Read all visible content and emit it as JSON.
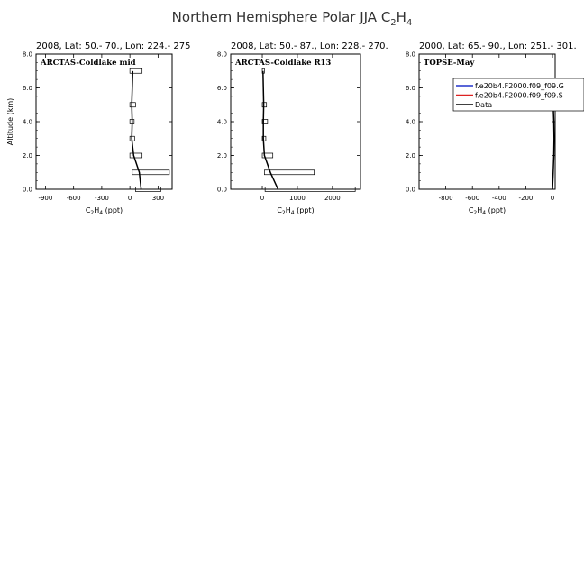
{
  "figure": {
    "title": "Northern Hemisphere Polar JJA C",
    "title_sub1": "2",
    "title_mid": "H",
    "title_sub2": "4",
    "ylabel": "Altitude (km)",
    "xlabel_main": "C",
    "xlabel_sub1": "2",
    "xlabel_mid": "H",
    "xlabel_sub2": "4",
    "xlabel_unit": " (ppt)"
  },
  "legend": {
    "entries": [
      {
        "label": "f.e20b4.F2000.f09_f09.G",
        "color": "#2233cc"
      },
      {
        "label": "f.e20b4.F2000.f09_f09.S",
        "color": "#dd2222"
      },
      {
        "label": "Data",
        "color": "#000000"
      }
    ]
  },
  "chart_data": [
    {
      "type": "line",
      "header": "2008, Lat:  50.- 70., Lon: 224.- 275",
      "campaign_label": "ARCTAS-Coldlake mid",
      "xlim": [
        -1000,
        450
      ],
      "ylim": [
        0,
        8
      ],
      "xticks": [
        -900,
        -600,
        -300,
        0,
        300
      ],
      "xtick_labels": [
        "-900",
        "-600",
        "-300",
        "0",
        "300"
      ],
      "yticks": [
        0,
        2,
        4,
        6,
        8
      ],
      "ytick_labels": [
        "0.0",
        "2.0",
        "4.0",
        "6.0",
        "8.0"
      ],
      "series": [
        {
          "name": "Data",
          "color": "#000000",
          "x": [
            120,
            100,
            40,
            20,
            25,
            20,
            30
          ],
          "y": [
            0,
            1,
            2,
            3,
            4,
            5,
            7
          ]
        }
      ],
      "ranges": [
        {
          "y": 0,
          "x0": 60,
          "x1": 330
        },
        {
          "y": 1,
          "x0": 25,
          "x1": 420
        },
        {
          "y": 2,
          "x0": 0,
          "x1": 130
        },
        {
          "y": 3,
          "x0": 0,
          "x1": 50
        },
        {
          "y": 4,
          "x0": 0,
          "x1": 45
        },
        {
          "y": 5,
          "x0": 0,
          "x1": 60
        },
        {
          "y": 7,
          "x0": 0,
          "x1": 130
        }
      ]
    },
    {
      "type": "line",
      "header": "2008, Lat:  50.- 87., Lon: 228.- 270.",
      "campaign_label": "ARCTAS-Coldlake R13",
      "xlim": [
        -900,
        2800
      ],
      "ylim": [
        0,
        8
      ],
      "xticks": [
        0,
        1000,
        2000
      ],
      "xtick_labels": [
        "0",
        "1000",
        "2000"
      ],
      "yticks": [
        0,
        2,
        4,
        6,
        8
      ],
      "ytick_labels": [
        "0.0",
        "2.0",
        "4.0",
        "6.0",
        "8.0"
      ],
      "series": [
        {
          "name": "Data",
          "color": "#000000",
          "x": [
            450,
            230,
            60,
            30,
            30,
            40,
            20
          ],
          "y": [
            0,
            1,
            2,
            3,
            4,
            5,
            7
          ]
        }
      ],
      "ranges": [
        {
          "y": 0,
          "x0": 80,
          "x1": 2650
        },
        {
          "y": 1,
          "x0": 60,
          "x1": 1480
        },
        {
          "y": 2,
          "x0": 0,
          "x1": 300
        },
        {
          "y": 3,
          "x0": 0,
          "x1": 100
        },
        {
          "y": 4,
          "x0": 0,
          "x1": 150
        },
        {
          "y": 5,
          "x0": 0,
          "x1": 120
        },
        {
          "y": 7,
          "x0": 0,
          "x1": 60
        }
      ]
    },
    {
      "type": "line",
      "header": "2000, Lat: 65.- 90., Lon: 251.- 301.",
      "campaign_label": "TOPSE-May",
      "xlim": [
        -1000,
        20
      ],
      "ylim": [
        0,
        8
      ],
      "xticks": [
        -800,
        -600,
        -400,
        -200,
        0
      ],
      "xtick_labels": [
        "-800",
        "-600",
        "-400",
        "-200",
        "0"
      ],
      "yticks": [
        0,
        2,
        4,
        6,
        8
      ],
      "ytick_labels": [
        "0.0",
        "2.0",
        "4.0",
        "6.0",
        "8.0"
      ],
      "series": [
        {
          "name": "Data",
          "color": "#000000",
          "x": [
            0,
            5,
            10,
            12,
            10,
            5
          ],
          "y": [
            0,
            1,
            2,
            3,
            4,
            5
          ]
        }
      ],
      "ranges": []
    }
  ]
}
